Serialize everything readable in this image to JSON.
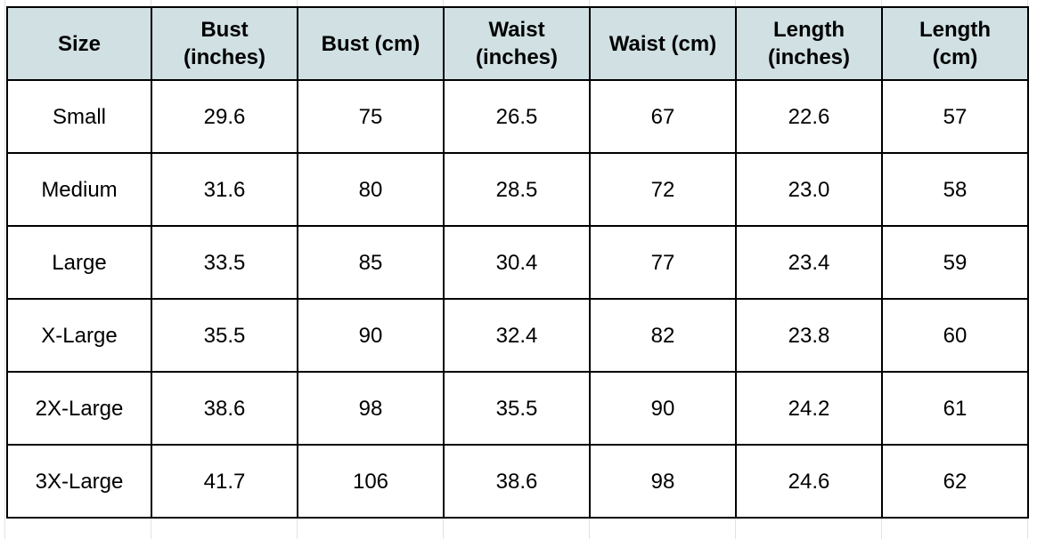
{
  "table": {
    "header": [
      "Size",
      "Bust\n(inches)",
      "Bust (cm)",
      "Waist\n(inches)",
      "Waist (cm)",
      "Length\n(inches)",
      "Length\n(cm)"
    ],
    "rows": [
      [
        "Small",
        "29.6",
        "75",
        "26.5",
        "67",
        "22.6",
        "57"
      ],
      [
        "Medium",
        "31.6",
        "80",
        "28.5",
        "72",
        "23.0",
        "58"
      ],
      [
        "Large",
        "33.5",
        "85",
        "30.4",
        "77",
        "23.4",
        "59"
      ],
      [
        "X-Large",
        "35.5",
        "90",
        "32.4",
        "82",
        "23.8",
        "60"
      ],
      [
        "2X-Large",
        "38.6",
        "98",
        "35.5",
        "90",
        "24.2",
        "61"
      ],
      [
        "3X-Large",
        "41.7",
        "106",
        "38.6",
        "98",
        "24.6",
        "62"
      ]
    ]
  }
}
